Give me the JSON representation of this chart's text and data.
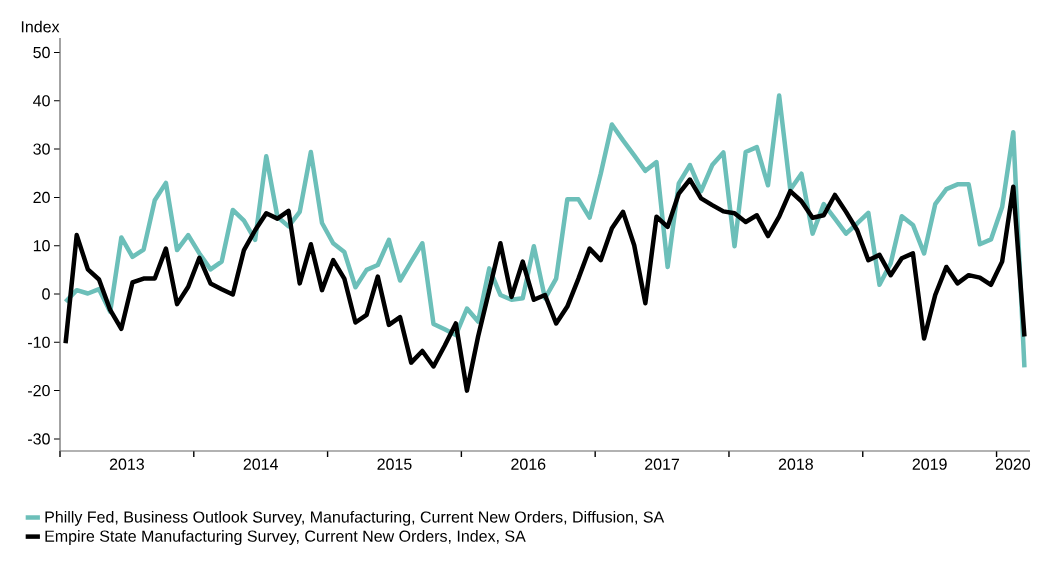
{
  "chart_data": {
    "type": "line",
    "ylabel": "Index",
    "x": [
      "2013-01-16",
      "2013-02-16",
      "2013-03-16",
      "2013-04-16",
      "2013-05-16",
      "2013-06-16",
      "2013-07-16",
      "2013-08-16",
      "2013-09-16",
      "2013-10-16",
      "2013-11-16",
      "2013-12-16",
      "2014-01-16",
      "2014-02-16",
      "2014-03-16",
      "2014-04-16",
      "2014-05-16",
      "2014-06-16",
      "2014-07-16",
      "2014-08-16",
      "2014-09-16",
      "2014-10-16",
      "2014-11-16",
      "2014-12-16",
      "2015-01-16",
      "2015-02-16",
      "2015-03-16",
      "2015-04-16",
      "2015-05-16",
      "2015-06-16",
      "2015-07-16",
      "2015-08-16",
      "2015-09-16",
      "2015-10-16",
      "2015-11-16",
      "2015-12-16",
      "2016-01-16",
      "2016-02-16",
      "2016-03-16",
      "2016-04-16",
      "2016-05-16",
      "2016-06-16",
      "2016-07-16",
      "2016-08-16",
      "2016-09-16",
      "2016-10-16",
      "2016-11-16",
      "2016-12-16",
      "2017-01-16",
      "2017-02-16",
      "2017-03-16",
      "2017-04-16",
      "2017-05-16",
      "2017-06-16",
      "2017-07-16",
      "2017-08-16",
      "2017-09-16",
      "2017-10-16",
      "2017-11-16",
      "2017-12-16",
      "2018-01-16",
      "2018-02-16",
      "2018-03-16",
      "2018-04-16",
      "2018-05-16",
      "2018-06-16",
      "2018-07-16",
      "2018-08-16",
      "2018-09-16",
      "2018-10-16",
      "2018-11-16",
      "2018-12-16",
      "2019-01-16",
      "2019-02-16",
      "2019-03-16",
      "2019-04-16",
      "2019-05-16",
      "2019-06-16",
      "2019-07-16",
      "2019-08-16",
      "2019-09-16",
      "2019-10-16",
      "2019-11-16",
      "2019-12-16",
      "2020-01-16",
      "2020-02-16",
      "2020-03-16"
    ],
    "series": [
      {
        "name": "Philly Fed, Business Outlook Survey, Manufacturing, Current New Orders, Diffusion, SA",
        "color": "#6cbfb9",
        "values": [
          -1.6,
          0.8,
          0.1,
          1.0,
          -3.7,
          11.7,
          7.7,
          9.2,
          19.4,
          23.0,
          9.1,
          12.2,
          8.4,
          5.1,
          6.7,
          17.4,
          15.2,
          11.2,
          28.5,
          16.0,
          14.0,
          17.0,
          29.4,
          14.7,
          10.5,
          8.7,
          1.4,
          5.0,
          6.0,
          11.2,
          2.8,
          6.7,
          10.5,
          -6.2,
          -7.3,
          -8.5,
          -3.0,
          -5.7,
          5.3,
          -0.2,
          -1.2,
          -0.9,
          9.9,
          -0.9,
          3.2,
          19.6,
          19.6,
          15.8,
          24.9,
          35.1,
          31.8,
          28.7,
          25.5,
          27.3,
          5.6,
          22.9,
          26.7,
          21.3,
          26.7,
          29.3,
          9.9,
          29.4,
          30.4,
          22.5,
          41.1,
          21.6,
          24.9,
          12.5,
          18.6,
          15.6,
          12.5,
          14.6,
          16.8,
          1.9,
          6.3,
          16.1,
          14.3,
          8.4,
          18.6,
          21.7,
          22.7,
          22.7,
          10.3,
          11.3,
          18.0,
          33.5,
          -15.2
        ]
      },
      {
        "name": "Empire State Manufacturing Survey, Current New Orders, Index, SA",
        "color": "#000000",
        "values": [
          -10.2,
          12.2,
          5.1,
          3.0,
          -3.3,
          -7.2,
          2.4,
          3.2,
          3.2,
          9.4,
          -2.1,
          1.5,
          7.5,
          2.2,
          1.0,
          -0.1,
          9.1,
          13.2,
          16.7,
          15.6,
          17.2,
          2.2,
          10.3,
          0.8,
          7.0,
          3.2,
          -5.9,
          -4.3,
          3.6,
          -6.4,
          -4.8,
          -14.2,
          -11.8,
          -15.0,
          -10.7,
          -6.1,
          -20.0,
          -8.8,
          0.8,
          10.5,
          -0.6,
          6.7,
          -1.2,
          -0.2,
          -6.1,
          -2.6,
          3.2,
          9.4,
          7.0,
          13.6,
          17.0,
          10.1,
          -1.9,
          16.0,
          13.9,
          20.8,
          23.7,
          19.8,
          18.4,
          17.1,
          16.7,
          14.9,
          16.3,
          12.0,
          16.0,
          21.3,
          19.2,
          15.8,
          16.3,
          20.5,
          17.0,
          13.2,
          7.0,
          8.1,
          3.9,
          7.4,
          8.4,
          -9.2,
          -0.2,
          5.6,
          2.2,
          3.9,
          3.4,
          1.9,
          6.7,
          22.2,
          -8.8
        ]
      }
    ],
    "xlim": [
      "2013-01-01",
      "2020-04-01"
    ],
    "xticks": [
      {
        "value": "2013-01-01",
        "label": null
      },
      {
        "value": "2013-07-01",
        "label": "2013"
      },
      {
        "value": "2014-01-01",
        "label": null
      },
      {
        "value": "2014-07-01",
        "label": "2014"
      },
      {
        "value": "2015-01-01",
        "label": null
      },
      {
        "value": "2015-07-01",
        "label": "2015"
      },
      {
        "value": "2016-01-01",
        "label": null
      },
      {
        "value": "2016-07-01",
        "label": "2016"
      },
      {
        "value": "2017-01-01",
        "label": null
      },
      {
        "value": "2017-07-01",
        "label": "2017"
      },
      {
        "value": "2018-01-01",
        "label": null
      },
      {
        "value": "2018-07-01",
        "label": "2018"
      },
      {
        "value": "2019-01-01",
        "label": null
      },
      {
        "value": "2019-07-01",
        "label": "2019"
      },
      {
        "value": "2020-01-01",
        "label": null
      },
      {
        "value": "2020-02-15",
        "label": "2020"
      }
    ],
    "ylim": [
      -32.5,
      53
    ],
    "yticks": [
      -30,
      -20,
      -10,
      0,
      10,
      20,
      30,
      40,
      50
    ],
    "legend": "bottom left"
  }
}
